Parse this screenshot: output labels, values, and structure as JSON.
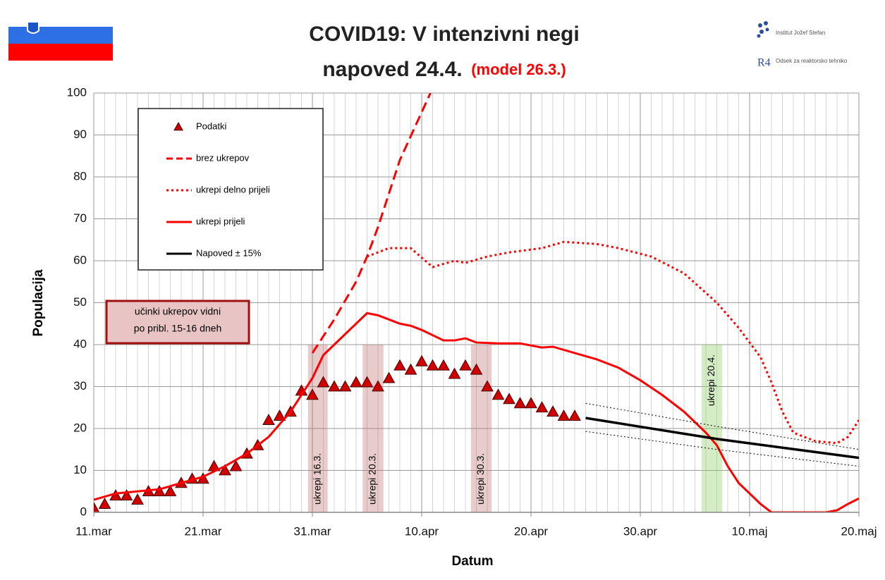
{
  "chart_data": {
    "type": "line",
    "title": "COVID19: V intenzivni negi",
    "subtitle": "napoved 24.4.",
    "subtitle_note": "(model 26.3.)",
    "logo_texts": [
      "Institut Jožef Stefan",
      "Odsek za reaktorsko tehniko"
    ],
    "x_label": "Datum",
    "y_label": "Populacija",
    "xlim": [
      0,
      70
    ],
    "xticks": [
      {
        "value": 0,
        "label": "11.mar"
      },
      {
        "value": 10,
        "label": "21.mar"
      },
      {
        "value": 20,
        "label": "31.mar"
      },
      {
        "value": 30,
        "label": "10.apr"
      },
      {
        "value": 40,
        "label": "20.apr"
      },
      {
        "value": 50,
        "label": "30.apr"
      },
      {
        "value": 60,
        "label": "10.maj"
      },
      {
        "value": 70,
        "label": "20.maj"
      }
    ],
    "x_minor_grid_step": 1,
    "ylim": [
      0,
      100
    ],
    "yticks": [
      0,
      10,
      20,
      30,
      40,
      50,
      60,
      70,
      80,
      90,
      100
    ],
    "grid": true,
    "legend": "upper left",
    "series": [
      {
        "name": "Podatki",
        "style": "markers",
        "color": "#d00000",
        "x": [
          0,
          1,
          2,
          3,
          4,
          5,
          6,
          7,
          8,
          9,
          10,
          11,
          12,
          13,
          14,
          15,
          16,
          17,
          18,
          19,
          20,
          21,
          22,
          23,
          24,
          25,
          26,
          27,
          28,
          29,
          30,
          31,
          32,
          33,
          34,
          35,
          36,
          37,
          38,
          39,
          40,
          41,
          42,
          43,
          44
        ],
        "values": [
          1,
          2,
          4,
          4,
          3,
          5,
          5,
          5,
          7,
          8,
          8,
          11,
          10,
          11,
          14,
          16,
          22,
          23,
          24,
          29,
          28,
          31,
          30,
          30,
          31,
          31,
          30,
          32,
          35,
          34,
          36,
          35,
          35,
          33,
          35,
          34,
          30,
          28,
          27,
          26,
          26,
          25,
          24,
          23,
          23
        ]
      },
      {
        "name": "brez ukrepov",
        "style": "dashed",
        "color": "#ff0000",
        "x": [
          20,
          22,
          24,
          25,
          26,
          28,
          30.8
        ],
        "values": [
          38,
          46,
          55,
          61,
          68,
          84,
          100
        ]
      },
      {
        "name": "ukrepi delno prijeli",
        "style": "dotted",
        "color": "#ff0000",
        "x": [
          25,
          27,
          29,
          31,
          33,
          34,
          36,
          38,
          41,
          43,
          46,
          48,
          51,
          54,
          57,
          59,
          61,
          62,
          63,
          64,
          66,
          68,
          69,
          70
        ],
        "values": [
          61,
          63,
          63,
          58.5,
          60,
          59.5,
          61,
          62,
          63,
          64.5,
          64,
          63,
          61,
          57,
          50,
          44,
          37,
          31,
          24,
          19,
          17,
          16.5,
          18,
          22
        ]
      },
      {
        "name": "ukrepi prijeli",
        "style": "solid",
        "color": "#ff0000",
        "x": [
          0,
          2,
          4,
          6,
          8,
          10,
          12,
          14,
          16,
          18,
          19,
          20,
          21,
          23,
          25,
          26,
          28,
          29,
          30,
          32,
          33,
          34,
          35,
          37,
          39,
          41,
          42,
          44,
          46,
          48,
          50,
          52,
          54,
          56,
          57,
          58,
          59,
          60,
          61,
          62,
          63,
          65,
          67,
          68,
          69,
          70
        ],
        "values": [
          3,
          4.5,
          5,
          5.5,
          7,
          8.5,
          11,
          14,
          18,
          24,
          28,
          32,
          37.5,
          42.5,
          47.5,
          47,
          45,
          44.5,
          43.5,
          41,
          41,
          41.5,
          40.5,
          40.3,
          40.3,
          39.3,
          39.5,
          38,
          36.5,
          34.5,
          31.5,
          28,
          24,
          19,
          16,
          11,
          7,
          4.5,
          2,
          0,
          0,
          0,
          0,
          0.5,
          2,
          3.3
        ]
      },
      {
        "name": "Napoved ± 15%",
        "style": "forecast",
        "color": "#000000",
        "x": [
          45,
          57,
          70
        ],
        "values": [
          22.5,
          17.5,
          13
        ],
        "band_upper": [
          26,
          20.5,
          15
        ],
        "band_lower": [
          19.3,
          15,
          11
        ]
      }
    ],
    "bands": [
      {
        "label": "ukrepi 16.3.",
        "x0": 19.6,
        "x1": 21.4,
        "color": "rgba(190,110,110,0.35)"
      },
      {
        "label": "ukrepi 20.3.",
        "x0": 24.6,
        "x1": 26.5,
        "color": "rgba(190,110,110,0.35)"
      },
      {
        "label": "ukrepi 30.3.",
        "x0": 34.5,
        "x1": 36.4,
        "color": "rgba(190,110,110,0.35)"
      },
      {
        "label": "ukrepi 20.4.",
        "x0": 55.6,
        "x1": 57.5,
        "color": "rgba(150,210,110,0.4)"
      }
    ],
    "note": [
      "učinki ukrepov vidni",
      "po pribl. 15-16 dneh"
    ]
  }
}
